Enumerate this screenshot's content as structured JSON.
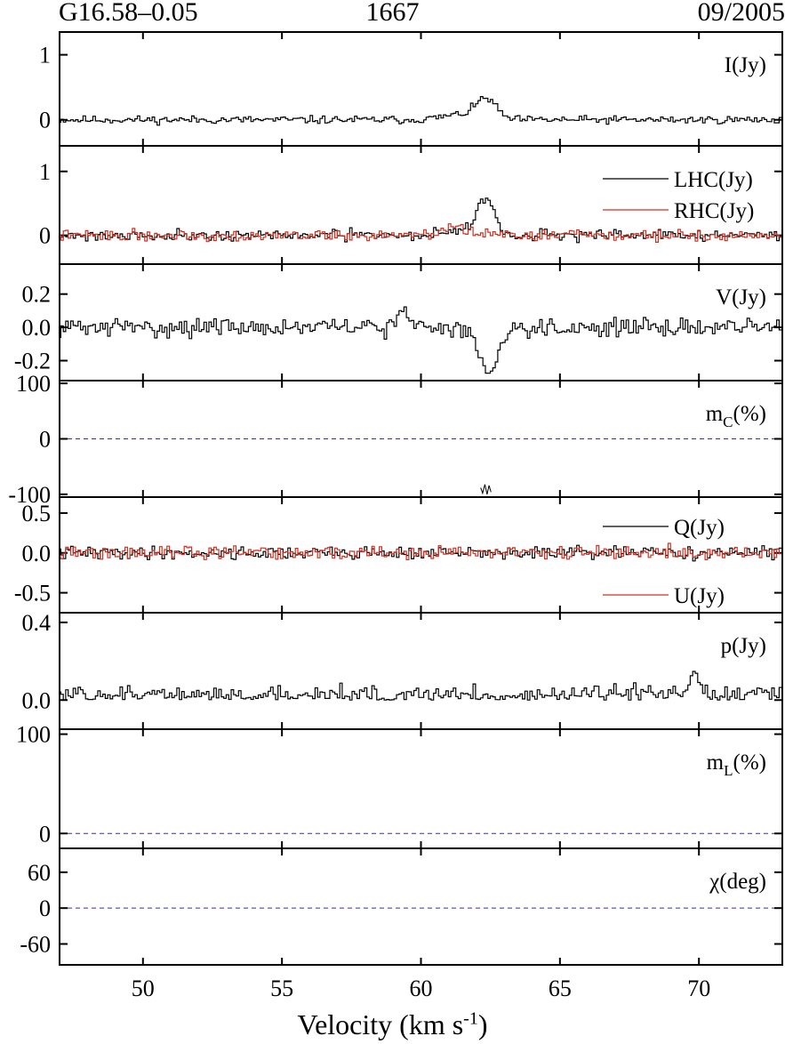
{
  "header": {
    "source": "G16.58–0.05",
    "frequency": "1667",
    "date": "09/2005"
  },
  "colors": {
    "primary": "#000000",
    "secondary": "#d03020",
    "zero_line": "#3030a0"
  },
  "chart_data": {
    "type": "line",
    "x_axis": {
      "label": "Velocity (km s",
      "label_exp": "-1",
      "label_close": ")",
      "range": [
        47.0,
        73.0
      ],
      "ticks": [
        50,
        55,
        60,
        65,
        70
      ],
      "tick_labels": [
        "50",
        "55",
        "60",
        "65",
        "70"
      ]
    },
    "panels": [
      {
        "id": "I",
        "ylim": [
          -0.4,
          1.35
        ],
        "yticks": [
          1,
          0
        ],
        "ytick_labels": [
          "1",
          "0"
        ],
        "legend_style": "label",
        "zero_line": false,
        "series": [
          {
            "name": "I(Jy)",
            "color": "#000000",
            "baseline": 0.0,
            "noise": 0.05,
            "seed": 11,
            "features": [
              {
                "center": 62.35,
                "amplitude": 0.3,
                "width": 0.35
              },
              {
                "center": 61.5,
                "amplitude": 0.08,
                "width": 0.7
              }
            ]
          }
        ]
      },
      {
        "id": "LHC-RHC",
        "ylim": [
          -0.45,
          1.4
        ],
        "yticks": [
          1,
          0
        ],
        "ytick_labels": [
          "1",
          "0"
        ],
        "legend_style": "line",
        "zero_line": false,
        "series": [
          {
            "name": "LHC(Jy)",
            "color": "#000000",
            "baseline": 0.0,
            "noise": 0.07,
            "seed": 21,
            "features": [
              {
                "center": 62.35,
                "amplitude": 0.58,
                "width": 0.28
              },
              {
                "center": 61.6,
                "amplitude": 0.1,
                "width": 0.6
              }
            ]
          },
          {
            "name": "RHC(Jy)",
            "color": "#d03020",
            "baseline": 0.0,
            "noise": 0.07,
            "seed": 22,
            "features": [
              {
                "center": 61.3,
                "amplitude": 0.12,
                "width": 0.5
              }
            ]
          }
        ]
      },
      {
        "id": "V",
        "ylim": [
          -0.32,
          0.38
        ],
        "yticks": [
          0.2,
          0.0,
          -0.2
        ],
        "ytick_labels": [
          "0.2",
          "0.0",
          "-0.2"
        ],
        "legend_style": "label",
        "zero_line": false,
        "series": [
          {
            "name": "V(Jy)",
            "color": "#000000",
            "baseline": 0.0,
            "noise": 0.045,
            "seed": 31,
            "features": [
              {
                "center": 62.4,
                "amplitude": -0.28,
                "width": 0.32
              },
              {
                "center": 59.4,
                "amplitude": 0.08,
                "width": 0.25
              }
            ]
          }
        ]
      },
      {
        "id": "mc",
        "ylim": [
          -105,
          105
        ],
        "yticks": [
          100,
          0,
          -100
        ],
        "ytick_labels": [
          "100",
          "0",
          "-100"
        ],
        "legend_style": "label",
        "legend_sub": "C",
        "zero_line": true,
        "series": [
          {
            "name": "m",
            "color": "#000000",
            "segment_only": true,
            "points": [
              [
                62.15,
                -88
              ],
              [
                62.22,
                -98
              ],
              [
                62.3,
                -82
              ],
              [
                62.38,
                -100
              ],
              [
                62.45,
                -84
              ],
              [
                62.52,
                -96
              ]
            ]
          }
        ]
      },
      {
        "id": "QU",
        "ylim": [
          -0.75,
          0.7
        ],
        "yticks": [
          0.5,
          0.0,
          -0.5
        ],
        "ytick_labels": [
          "0.5",
          "0.0",
          "-0.5"
        ],
        "legend_style": "line",
        "zero_line": false,
        "series": [
          {
            "name": "Q(Jy)",
            "color": "#000000",
            "baseline": 0.0,
            "noise": 0.065,
            "seed": 41,
            "features": []
          },
          {
            "name": "U(Jy)",
            "color": "#d03020",
            "baseline": 0.0,
            "noise": 0.07,
            "seed": 42,
            "features": []
          }
        ]
      },
      {
        "id": "p",
        "ylim": [
          -0.15,
          0.45
        ],
        "yticks": [
          0.4,
          0.0
        ],
        "ytick_labels": [
          "0.4",
          "0.0"
        ],
        "legend_style": "label",
        "zero_line": false,
        "series": [
          {
            "name": "p(Jy)",
            "color": "#000000",
            "baseline": 0.02,
            "noise": 0.045,
            "seed": 51,
            "positive": true,
            "features": [
              {
                "center": 69.9,
                "amplitude": 0.12,
                "width": 0.15
              }
            ]
          }
        ]
      },
      {
        "id": "mL",
        "ylim": [
          -15,
          105
        ],
        "yticks": [
          100,
          0
        ],
        "ytick_labels": [
          "100",
          "0"
        ],
        "legend_style": "label",
        "legend_sub": "L",
        "zero_line": true,
        "series": [
          {
            "name": "m",
            "color": "#000000",
            "empty": true
          }
        ]
      },
      {
        "id": "chi",
        "ylim": [
          -95,
          100
        ],
        "yticks": [
          60,
          0,
          -60
        ],
        "ytick_labels": [
          "60",
          "0",
          "-60"
        ],
        "legend_style": "label",
        "zero_line": true,
        "series": [
          {
            "name": "χ(deg)",
            "color": "#000000",
            "empty": true
          }
        ]
      }
    ],
    "legend_suffix_percent": "(%)"
  }
}
